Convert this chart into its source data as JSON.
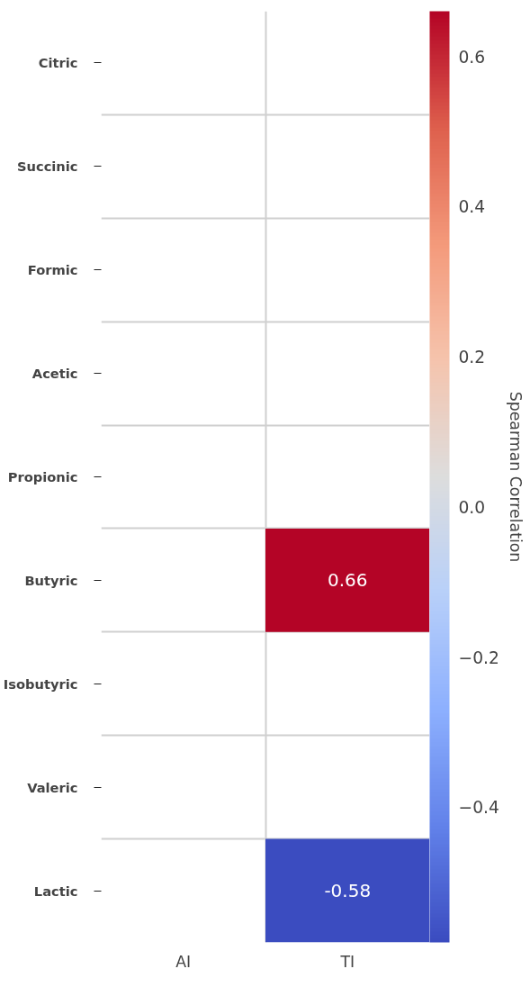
{
  "chart_data": {
    "type": "heatmap",
    "categories": [
      "AI",
      "TI"
    ],
    "y_categories": [
      "Citric",
      "Succinic",
      "Formic",
      "Acetic",
      "Propionic",
      "Butyric",
      "Isobutyric",
      "Valeric",
      "Lactic"
    ],
    "cells": [
      [
        null,
        null
      ],
      [
        null,
        null
      ],
      [
        null,
        null
      ],
      [
        null,
        null
      ],
      [
        null,
        null
      ],
      [
        null,
        0.66
      ],
      [
        null,
        null
      ],
      [
        null,
        null
      ],
      [
        null,
        -0.58
      ]
    ],
    "data_labels": true,
    "clim": [
      -0.58,
      0.66
    ],
    "cticks": [
      {
        "value": -0.4,
        "label": "−0.4"
      },
      {
        "value": -0.2,
        "label": "−0.2"
      },
      {
        "value": 0.0,
        "label": "0.0"
      },
      {
        "value": 0.2,
        "label": "0.2"
      },
      {
        "value": 0.4,
        "label": "0.4"
      },
      {
        "value": 0.6,
        "label": "0.6"
      }
    ],
    "clabel": "Spearman Correlation"
  }
}
